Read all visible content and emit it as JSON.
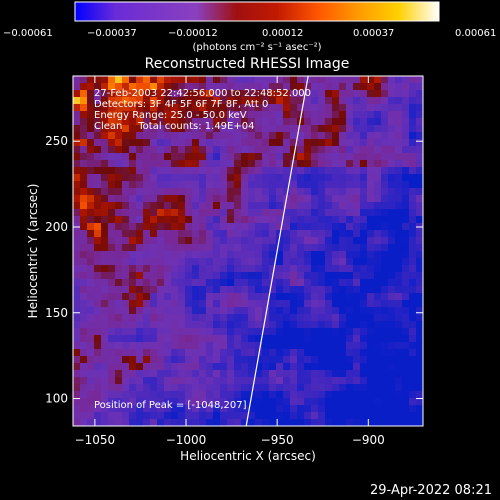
{
  "chart_data": {
    "type": "heatmap",
    "title": "Reconstructed RHESSI Image",
    "xlabel": "Heliocentric X (arcsec)",
    "ylabel": "Heliocentric Y (arcsec)",
    "xlim": [
      -1062,
      -870
    ],
    "ylim": [
      84,
      288
    ],
    "x_ticks": [
      -1050,
      -1000,
      -950,
      -900
    ],
    "x_tick_labels": [
      "−1050",
      "−1000",
      "−950",
      "−900"
    ],
    "y_ticks": [
      100,
      150,
      200,
      250
    ],
    "y_tick_labels": [
      "100",
      "150",
      "200",
      "250"
    ],
    "colorbar": {
      "ticks": [
        -0.00061,
        -0.00037,
        -0.00012,
        0.00012,
        0.00037,
        0.00061
      ],
      "tick_labels": [
        "−0.00061",
        "−0.00037",
        "−0.00012",
        "0.00012",
        "0.00037",
        "0.00061"
      ],
      "unit_label": "(photons cm⁻² s⁻¹ asec⁻²)",
      "colormap": [
        "#0000ff",
        "#6a2bd9",
        "#7a36c8",
        "#8a40c0",
        "#a01010",
        "#c21a00",
        "#ff5500",
        "#ff9a00",
        "#ffd000",
        "#ffffff"
      ]
    },
    "annotations": [
      "27-Feb-2003 22:42:56.000 to 22:48:52.000",
      "Detectors: 3F 4F 5F 6F 7F 8F, Att 0",
      "Energy Range: 25.0 - 50.0 keV",
      "Clean     Total counts: 1.49E+04",
      "Position of Peak = [-1048,207]"
    ],
    "limb_line": [
      [
        -967,
        84
      ],
      [
        -933,
        288
      ]
    ],
    "grid": false,
    "legend": "none"
  },
  "footer": {
    "timestamp": "29-Apr-2022 08:21"
  }
}
